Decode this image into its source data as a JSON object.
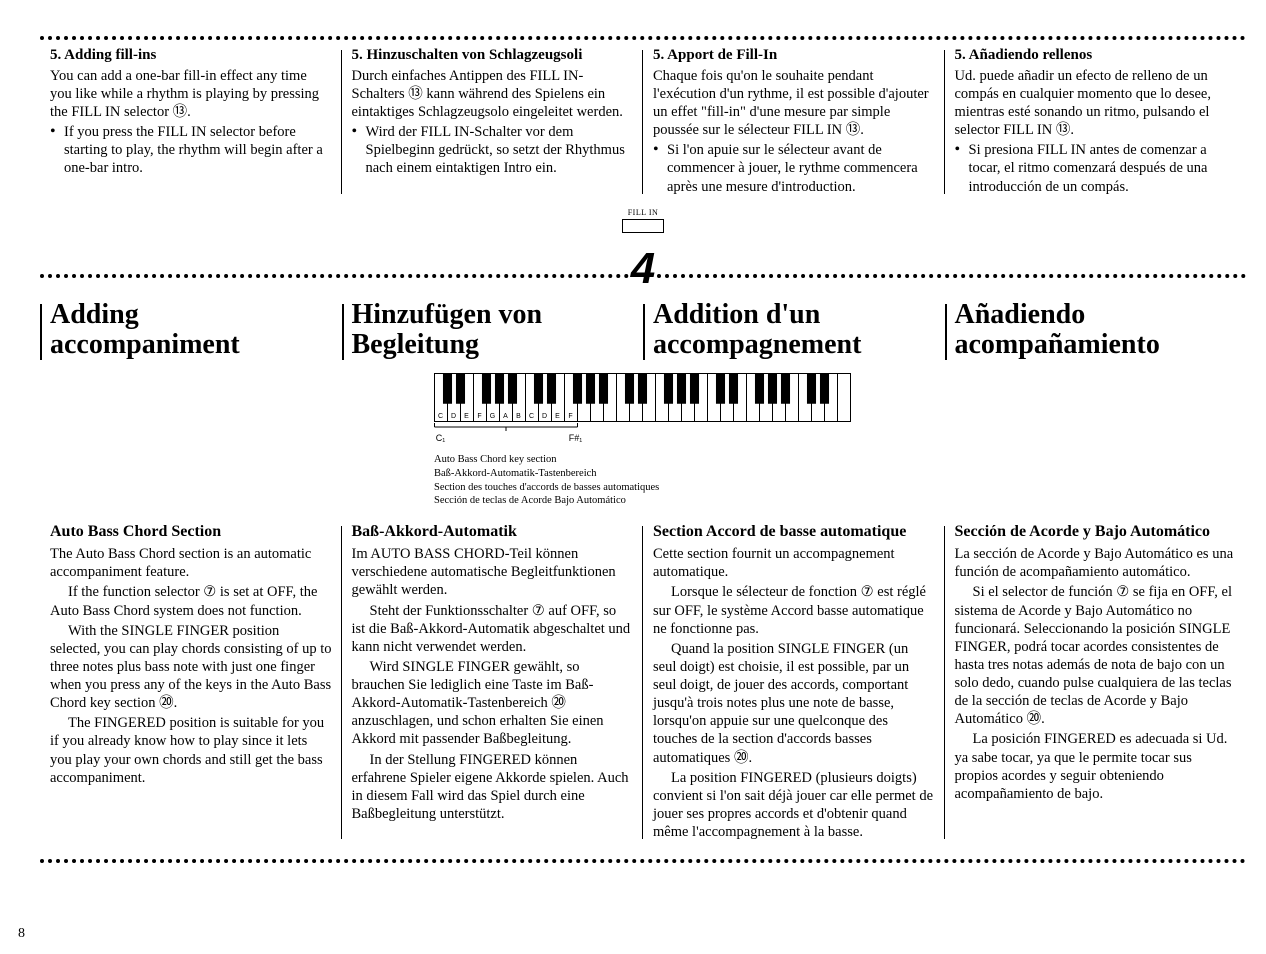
{
  "page_number": "8",
  "top": {
    "en": {
      "heading": "5. Adding fill-ins",
      "p1": "You can add a one-bar fill-in effect any time you like while a rhythm is playing by pressing the FILL IN selector ⑬.",
      "b1": "If you press the FILL IN selector before starting to play, the rhythm will begin after a one-bar intro."
    },
    "de": {
      "heading": "5. Hinzuschalten von Schlagzeugsoli",
      "p1": "Durch einfaches Antippen des FILL IN-Schalters ⑬ kann während des Spielens ein eintaktiges Schlagzeugsolo eingeleitet werden.",
      "b1": "Wird der FILL IN-Schalter vor dem Spielbeginn gedrückt, so setzt der Rhythmus nach einem eintaktigen Intro ein."
    },
    "fr": {
      "heading": "5. Apport de Fill-In",
      "p1": "Chaque fois qu'on le souhaite pendant l'exécution d'un rythme, il est possible d'ajouter un effet \"fill-in\" d'une mesure par simple poussée sur le sélecteur FILL IN ⑬.",
      "b1": "Si l'on apuie sur le sélecteur avant de commencer à jouer, le rythme commencera après une mesure d'introduction."
    },
    "es": {
      "heading": "5. Añadiendo rellenos",
      "p1": "Ud. puede añadir un efecto de relleno de un compás en cualquier momento que lo desee, mientras esté sonando un ritmo, pulsando el selector FILL IN ⑬.",
      "b1": "Si presiona FILL IN antes de comenzar a tocar, el ritmo comenzará después de una introducción de un compás."
    }
  },
  "fillin_label": "FILL IN",
  "section_number": "4",
  "titles": {
    "en": "Adding\naccompaniment",
    "de": "Hinzufügen von\nBegleitung",
    "fr": "Addition d'un\naccompagnement",
    "es": "Añadiendo\nacompañamiento"
  },
  "keyboard": {
    "white_keys": 32,
    "labeled_white_keys": 11,
    "labels": [
      "C",
      "D",
      "E",
      "F",
      "G",
      "A",
      "B",
      "C",
      "D",
      "E",
      "F"
    ],
    "left_label": "C₁",
    "right_label": "F#₁",
    "caption": "Auto Bass Chord key section\nBaß-Akkord-Automatik-Tastenbereich\nSection des touches d'accords de basses automatiques\nSección de teclas de Acorde Bajo Automático"
  },
  "body": {
    "en": {
      "heading": "Auto Bass Chord Section",
      "p1": "The Auto Bass Chord section is an automatic accompaniment feature.",
      "p2": "If the function selector ⑦ is set at OFF, the Auto Bass Chord system does not function.",
      "p3": "With the SINGLE FINGER position selected, you can play chords consisting of up to three notes plus bass note with just one finger when you press any of the keys in the Auto Bass Chord key section ⑳.",
      "p4": "The FINGERED position is suitable for you if you already know how to play since it lets you play your own chords and still get the bass accompaniment."
    },
    "de": {
      "heading": "Baß-Akkord-Automatik",
      "p1": "Im AUTO BASS CHORD-Teil können verschiedene automatische Begleitfunktionen gewählt werden.",
      "p2": "Steht der Funktionsschalter ⑦ auf OFF, so ist die Baß-Akkord-Automatik abgeschaltet und kann nicht verwendet werden.",
      "p3": "Wird SINGLE FINGER gewählt, so brauchen Sie lediglich eine Taste im Baß-Akkord-Automatik-Tastenbereich ⑳ anzuschlagen, und schon erhalten Sie einen Akkord mit passender Baßbegleitung.",
      "p4": "In der Stellung FINGERED können erfahrene Spieler eigene Akkorde spielen. Auch in diesem Fall wird das Spiel durch eine Baßbegleitung unterstützt."
    },
    "fr": {
      "heading": "Section Accord de basse automatique",
      "p1": "Cette section fournit un accompagnement automatique.",
      "p2": "Lorsque le sélecteur de fonction ⑦ est réglé sur OFF, le système Accord basse automatique ne fonctionne pas.",
      "p3": "Quand la position SINGLE FINGER (un seul doigt) est choisie, il est possible, par un seul doigt, de jouer des accords, comportant jusqu'à trois notes plus une note de basse, lorsqu'on appuie sur une quelconque des touches de la section d'accords basses automatiques ⑳.",
      "p4": "La position FINGERED (plusieurs doigts) convient si l'on sait déjà jouer car elle permet de jouer ses propres accords et d'obtenir quand même l'accompagnement à la basse."
    },
    "es": {
      "heading": "Sección de Acorde y Bajo Automático",
      "p1": "La sección de Acorde y Bajo Automático es una función de acompañamiento automático.",
      "p2": "Si el selector de función ⑦ se fija en OFF, el sistema de Acorde y Bajo Automático no funcionará. Seleccionando la posición SINGLE FINGER, podrá tocar acordes consistentes de hasta tres notas además de nota de bajo con un solo dedo, cuando pulse cualquiera de las teclas de la sección de teclas de Acorde y Bajo Automático ⑳.",
      "p3": "La posición FINGERED es adecuada si Ud. ya sabe tocar, ya que le permite tocar sus propios acordes y seguir obteniendo acompañamiento de bajo.",
      "p4": ""
    }
  }
}
